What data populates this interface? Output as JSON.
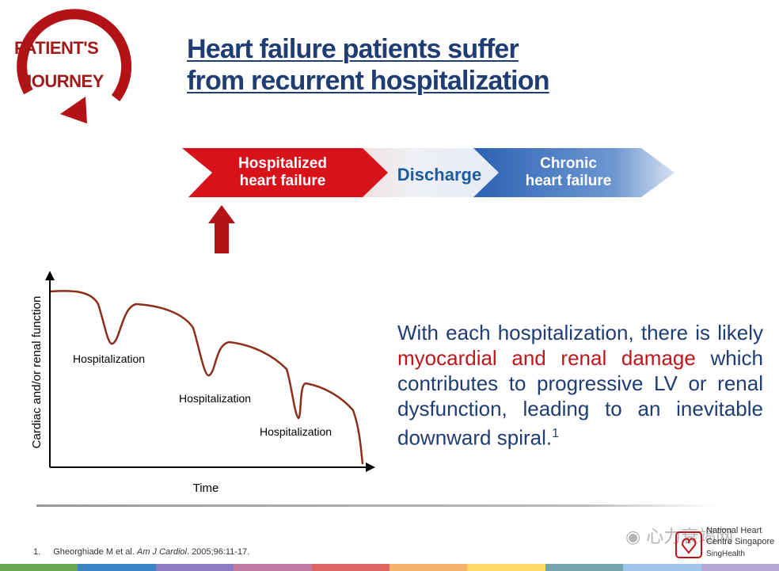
{
  "logo": {
    "line1": "PATIENT'S",
    "line2": "JOURNEY",
    "color": "#a01a1a"
  },
  "title": {
    "line1": "Heart failure patients suffer",
    "line2": "from recurrent hospitalization",
    "color": "#1f3c73"
  },
  "flow": {
    "steps": [
      {
        "label_l1": "Hospitalized",
        "label_l2": "heart failure"
      },
      {
        "label_l1": "Discharge"
      },
      {
        "label_l1": "Chronic",
        "label_l2": "heart failure"
      }
    ],
    "colors": {
      "red": "#d8121b",
      "blue": "#2c62b4"
    }
  },
  "chart": {
    "ylabel": "Cardiac and/or renal function",
    "xlabel": "Time",
    "annotations": [
      "Hospitalization",
      "Hospitalization",
      "Hospitalization"
    ]
  },
  "body": {
    "pre": "With each hospitalization, there is likely ",
    "accent": "myocardial and renal damage",
    "post": " which contributes to progressive LV or renal dysfunction, leading to an inevitable downward spiral.",
    "sup": "1",
    "accent_color": "#c0161b"
  },
  "footnote": {
    "num": "1.",
    "authors": "Gheorghiade M et al. ",
    "journal": "Am J Cardiol",
    "rest": ". 2005;96:11-17."
  },
  "org": {
    "line1": "National Heart",
    "line2": "Centre Singapore",
    "line3": "SingHealth"
  },
  "watermark": "心力衰竭网",
  "bottom_bar_colors": [
    "#6aa84f",
    "#3d85c6",
    "#8e7cc3",
    "#c27ba0",
    "#e06666",
    "#f6b26b",
    "#ffd966",
    "#76a5af",
    "#9fc5e8",
    "#b4a7d6"
  ]
}
